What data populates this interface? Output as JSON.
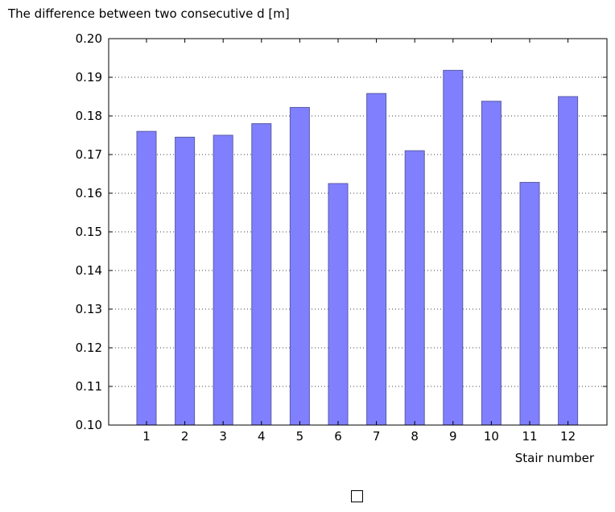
{
  "chart_data": {
    "type": "bar",
    "ylabel": "The difference between two consecutive d [m]",
    "xlabel": "Stair number",
    "categories": [
      "1",
      "2",
      "3",
      "4",
      "5",
      "6",
      "7",
      "8",
      "9",
      "10",
      "11",
      "12"
    ],
    "values": [
      0.176,
      0.1745,
      0.175,
      0.178,
      0.1822,
      0.1625,
      0.1858,
      0.171,
      0.1918,
      0.1838,
      0.1628,
      0.185
    ],
    "ylim": [
      0.1,
      0.2
    ],
    "yticks": [
      "0.10",
      "0.11",
      "0.12",
      "0.13",
      "0.14",
      "0.15",
      "0.16",
      "0.17",
      "0.18",
      "0.19",
      "0.20"
    ],
    "grid": "horizontal-dotted",
    "bar_color": "#8080ff",
    "bar_edge_color": "#5a5aa6",
    "legend_entries": [
      ""
    ]
  }
}
